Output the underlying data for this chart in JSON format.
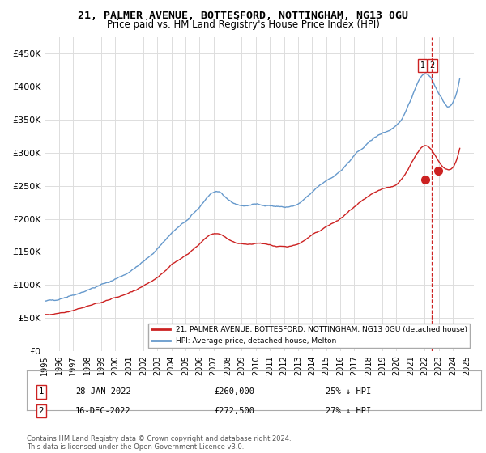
{
  "title1": "21, PALMER AVENUE, BOTTESFORD, NOTTINGHAM, NG13 0GU",
  "title2": "Price paid vs. HM Land Registry's House Price Index (HPI)",
  "ylabel_ticks": [
    "£0",
    "£50K",
    "£100K",
    "£150K",
    "£200K",
    "£250K",
    "£300K",
    "£350K",
    "£400K",
    "£450K"
  ],
  "ylabel_values": [
    0,
    50000,
    100000,
    150000,
    200000,
    250000,
    300000,
    350000,
    400000,
    450000
  ],
  "ylim": [
    0,
    475000
  ],
  "xlim_start": 1995.0,
  "xlim_end": 2025.5,
  "hpi_color": "#6699cc",
  "price_color": "#cc2222",
  "dashed_line_color": "#cc2222",
  "legend_label1": "21, PALMER AVENUE, BOTTESFORD, NOTTINGHAM, NG13 0GU (detached house)",
  "legend_label2": "HPI: Average price, detached house, Melton",
  "annotation1_date": "28-JAN-2022",
  "annotation1_price": "£260,000",
  "annotation1_hpi": "25% ↓ HPI",
  "annotation2_date": "16-DEC-2022",
  "annotation2_price": "£272,500",
  "annotation2_hpi": "27% ↓ HPI",
  "footer": "Contains HM Land Registry data © Crown copyright and database right 2024.\nThis data is licensed under the Open Government Licence v3.0.",
  "xtick_years": [
    1995,
    1996,
    1997,
    1998,
    1999,
    2000,
    2001,
    2002,
    2003,
    2004,
    2005,
    2006,
    2007,
    2008,
    2009,
    2010,
    2011,
    2012,
    2013,
    2014,
    2015,
    2016,
    2017,
    2018,
    2019,
    2020,
    2021,
    2022,
    2023,
    2024,
    2025
  ],
  "sale1_x": 2022.07,
  "sale1_y": 260000,
  "sale2_x": 2022.96,
  "sale2_y": 272500,
  "dashed_x": 2022.5,
  "hpi_keypoints_x": [
    1995,
    1997,
    1999,
    2001,
    2003,
    2004,
    2005,
    2006,
    2007,
    2008,
    2009,
    2010,
    2011,
    2012,
    2013,
    2014,
    2015,
    2016,
    2017,
    2018,
    2019,
    2020,
    2021,
    2022,
    2023,
    2024
  ],
  "hpi_keypoints_y": [
    75000,
    85000,
    100000,
    120000,
    155000,
    178000,
    196000,
    218000,
    240000,
    230000,
    220000,
    222000,
    220000,
    218000,
    222000,
    240000,
    258000,
    272000,
    295000,
    315000,
    330000,
    340000,
    380000,
    420000,
    390000,
    375000
  ],
  "price_keypoints_x": [
    1995,
    1997,
    1999,
    2001,
    2003,
    2004,
    2005,
    2006,
    2007,
    2008,
    2009,
    2010,
    2011,
    2012,
    2013,
    2014,
    2015,
    2016,
    2017,
    2018,
    2019,
    2020,
    2021,
    2022,
    2023,
    2024
  ],
  "price_keypoints_y": [
    55000,
    62000,
    74000,
    88000,
    112000,
    130000,
    145000,
    162000,
    178000,
    170000,
    162000,
    163000,
    160000,
    158000,
    162000,
    175000,
    188000,
    200000,
    218000,
    233000,
    245000,
    252000,
    282000,
    310000,
    288000,
    278000
  ]
}
